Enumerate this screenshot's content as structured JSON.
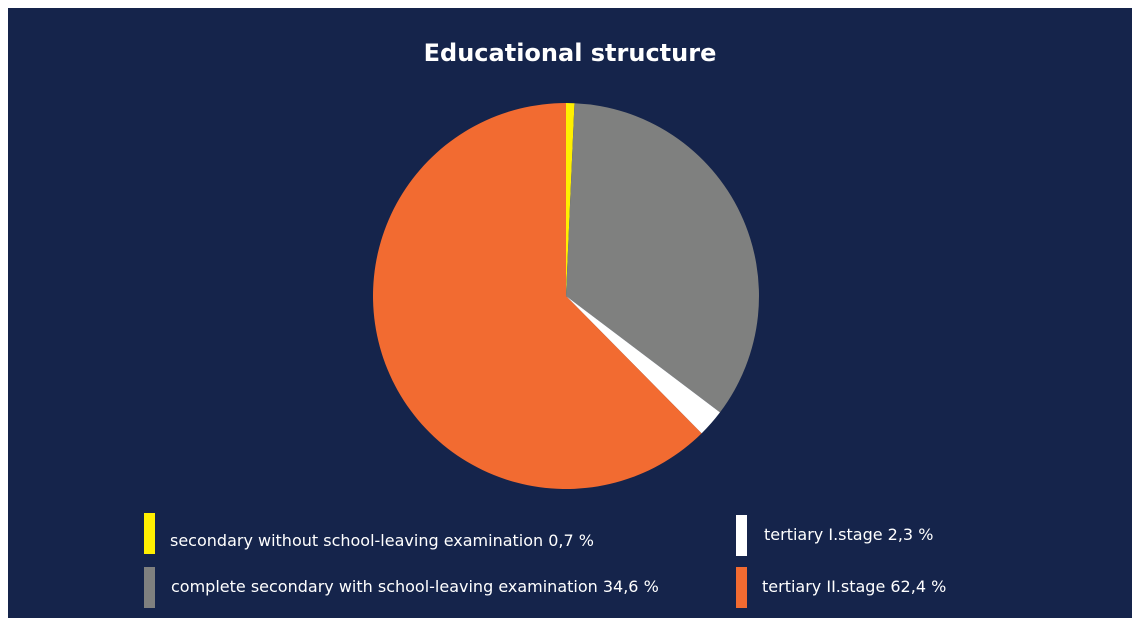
{
  "chart_data": {
    "type": "pie",
    "title": "Educational structure",
    "categories": [
      "secondary without school-leaving examination",
      "complete secondary with school-leaving examination",
      "tertiary I.stage",
      "tertiary II.stage"
    ],
    "values": [
      0.7,
      34.6,
      2.3,
      62.4
    ],
    "colors": [
      "#ffef00",
      "#7f807f",
      "#ffffff",
      "#f26b31"
    ],
    "legend": {
      "placement": "bottom",
      "items": [
        {
          "label": "secondary without school-leaving examination 0,7 %",
          "color": "#ffef00"
        },
        {
          "label": "tertiary I.stage 2,3 %",
          "color": "#ffffff"
        },
        {
          "label": "complete secondary with school-leaving examination 34,6 %",
          "color": "#7f807f"
        },
        {
          "label": "tertiary II.stage 62,4 %",
          "color": "#f26b31"
        }
      ]
    }
  },
  "theme": {
    "background": "#15244b",
    "text_color": "#ffffff"
  }
}
